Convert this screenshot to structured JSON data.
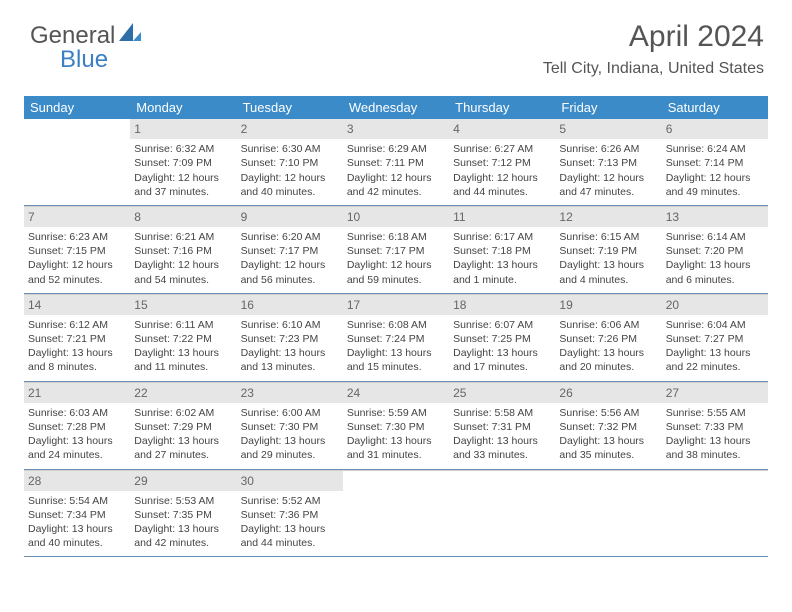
{
  "brand": {
    "text1": "General",
    "text2": "Blue",
    "accent_color": "#3b8bc9"
  },
  "header": {
    "month_year": "April 2024",
    "location": "Tell City, Indiana, United States"
  },
  "days_of_week": [
    "Sunday",
    "Monday",
    "Tuesday",
    "Wednesday",
    "Thursday",
    "Friday",
    "Saturday"
  ],
  "colors": {
    "header_bg": "#3b8bc9",
    "daynum_bg": "#e6e6e6",
    "row_border": "#6a8fb5"
  },
  "weeks": [
    [
      {
        "n": "",
        "sunrise": "",
        "sunset": "",
        "daylight": ""
      },
      {
        "n": "1",
        "sunrise": "Sunrise: 6:32 AM",
        "sunset": "Sunset: 7:09 PM",
        "daylight": "Daylight: 12 hours and 37 minutes."
      },
      {
        "n": "2",
        "sunrise": "Sunrise: 6:30 AM",
        "sunset": "Sunset: 7:10 PM",
        "daylight": "Daylight: 12 hours and 40 minutes."
      },
      {
        "n": "3",
        "sunrise": "Sunrise: 6:29 AM",
        "sunset": "Sunset: 7:11 PM",
        "daylight": "Daylight: 12 hours and 42 minutes."
      },
      {
        "n": "4",
        "sunrise": "Sunrise: 6:27 AM",
        "sunset": "Sunset: 7:12 PM",
        "daylight": "Daylight: 12 hours and 44 minutes."
      },
      {
        "n": "5",
        "sunrise": "Sunrise: 6:26 AM",
        "sunset": "Sunset: 7:13 PM",
        "daylight": "Daylight: 12 hours and 47 minutes."
      },
      {
        "n": "6",
        "sunrise": "Sunrise: 6:24 AM",
        "sunset": "Sunset: 7:14 PM",
        "daylight": "Daylight: 12 hours and 49 minutes."
      }
    ],
    [
      {
        "n": "7",
        "sunrise": "Sunrise: 6:23 AM",
        "sunset": "Sunset: 7:15 PM",
        "daylight": "Daylight: 12 hours and 52 minutes."
      },
      {
        "n": "8",
        "sunrise": "Sunrise: 6:21 AM",
        "sunset": "Sunset: 7:16 PM",
        "daylight": "Daylight: 12 hours and 54 minutes."
      },
      {
        "n": "9",
        "sunrise": "Sunrise: 6:20 AM",
        "sunset": "Sunset: 7:17 PM",
        "daylight": "Daylight: 12 hours and 56 minutes."
      },
      {
        "n": "10",
        "sunrise": "Sunrise: 6:18 AM",
        "sunset": "Sunset: 7:17 PM",
        "daylight": "Daylight: 12 hours and 59 minutes."
      },
      {
        "n": "11",
        "sunrise": "Sunrise: 6:17 AM",
        "sunset": "Sunset: 7:18 PM",
        "daylight": "Daylight: 13 hours and 1 minute."
      },
      {
        "n": "12",
        "sunrise": "Sunrise: 6:15 AM",
        "sunset": "Sunset: 7:19 PM",
        "daylight": "Daylight: 13 hours and 4 minutes."
      },
      {
        "n": "13",
        "sunrise": "Sunrise: 6:14 AM",
        "sunset": "Sunset: 7:20 PM",
        "daylight": "Daylight: 13 hours and 6 minutes."
      }
    ],
    [
      {
        "n": "14",
        "sunrise": "Sunrise: 6:12 AM",
        "sunset": "Sunset: 7:21 PM",
        "daylight": "Daylight: 13 hours and 8 minutes."
      },
      {
        "n": "15",
        "sunrise": "Sunrise: 6:11 AM",
        "sunset": "Sunset: 7:22 PM",
        "daylight": "Daylight: 13 hours and 11 minutes."
      },
      {
        "n": "16",
        "sunrise": "Sunrise: 6:10 AM",
        "sunset": "Sunset: 7:23 PM",
        "daylight": "Daylight: 13 hours and 13 minutes."
      },
      {
        "n": "17",
        "sunrise": "Sunrise: 6:08 AM",
        "sunset": "Sunset: 7:24 PM",
        "daylight": "Daylight: 13 hours and 15 minutes."
      },
      {
        "n": "18",
        "sunrise": "Sunrise: 6:07 AM",
        "sunset": "Sunset: 7:25 PM",
        "daylight": "Daylight: 13 hours and 17 minutes."
      },
      {
        "n": "19",
        "sunrise": "Sunrise: 6:06 AM",
        "sunset": "Sunset: 7:26 PM",
        "daylight": "Daylight: 13 hours and 20 minutes."
      },
      {
        "n": "20",
        "sunrise": "Sunrise: 6:04 AM",
        "sunset": "Sunset: 7:27 PM",
        "daylight": "Daylight: 13 hours and 22 minutes."
      }
    ],
    [
      {
        "n": "21",
        "sunrise": "Sunrise: 6:03 AM",
        "sunset": "Sunset: 7:28 PM",
        "daylight": "Daylight: 13 hours and 24 minutes."
      },
      {
        "n": "22",
        "sunrise": "Sunrise: 6:02 AM",
        "sunset": "Sunset: 7:29 PM",
        "daylight": "Daylight: 13 hours and 27 minutes."
      },
      {
        "n": "23",
        "sunrise": "Sunrise: 6:00 AM",
        "sunset": "Sunset: 7:30 PM",
        "daylight": "Daylight: 13 hours and 29 minutes."
      },
      {
        "n": "24",
        "sunrise": "Sunrise: 5:59 AM",
        "sunset": "Sunset: 7:30 PM",
        "daylight": "Daylight: 13 hours and 31 minutes."
      },
      {
        "n": "25",
        "sunrise": "Sunrise: 5:58 AM",
        "sunset": "Sunset: 7:31 PM",
        "daylight": "Daylight: 13 hours and 33 minutes."
      },
      {
        "n": "26",
        "sunrise": "Sunrise: 5:56 AM",
        "sunset": "Sunset: 7:32 PM",
        "daylight": "Daylight: 13 hours and 35 minutes."
      },
      {
        "n": "27",
        "sunrise": "Sunrise: 5:55 AM",
        "sunset": "Sunset: 7:33 PM",
        "daylight": "Daylight: 13 hours and 38 minutes."
      }
    ],
    [
      {
        "n": "28",
        "sunrise": "Sunrise: 5:54 AM",
        "sunset": "Sunset: 7:34 PM",
        "daylight": "Daylight: 13 hours and 40 minutes."
      },
      {
        "n": "29",
        "sunrise": "Sunrise: 5:53 AM",
        "sunset": "Sunset: 7:35 PM",
        "daylight": "Daylight: 13 hours and 42 minutes."
      },
      {
        "n": "30",
        "sunrise": "Sunrise: 5:52 AM",
        "sunset": "Sunset: 7:36 PM",
        "daylight": "Daylight: 13 hours and 44 minutes."
      },
      {
        "n": "",
        "sunrise": "",
        "sunset": "",
        "daylight": ""
      },
      {
        "n": "",
        "sunrise": "",
        "sunset": "",
        "daylight": ""
      },
      {
        "n": "",
        "sunrise": "",
        "sunset": "",
        "daylight": ""
      },
      {
        "n": "",
        "sunrise": "",
        "sunset": "",
        "daylight": ""
      }
    ]
  ]
}
